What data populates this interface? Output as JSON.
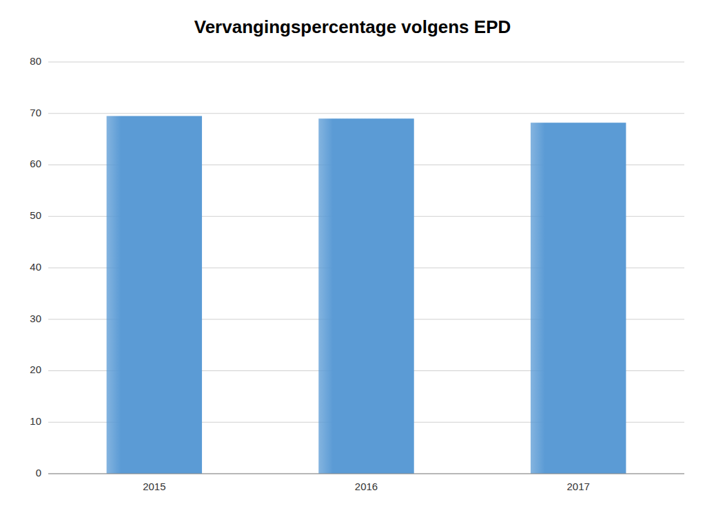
{
  "chart_data": {
    "type": "bar",
    "title": "Vervangingspercentage volgens EPD",
    "categories": [
      "2015",
      "2016",
      "2017"
    ],
    "values": [
      69.5,
      69.0,
      68.2
    ],
    "color": "#5B9BD5",
    "ylim": [
      0,
      80
    ],
    "yticks": [
      0,
      10,
      20,
      30,
      40,
      50,
      60,
      70,
      80
    ],
    "grid": true
  }
}
